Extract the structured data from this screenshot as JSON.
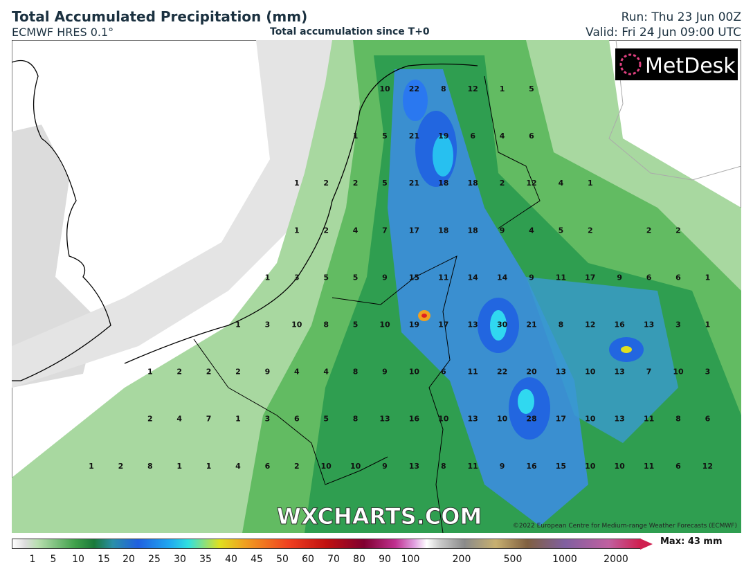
{
  "header": {
    "title": "Total Accumulated Precipitation (mm)",
    "model": "ECMWF HRES 0.1°",
    "subtitle": "Total accumulation since T+0",
    "run": "Run: Thu 23 Jun 00Z",
    "valid": "Valid: Fri 24 Jun 09:00 UTC"
  },
  "map": {
    "logo": "MetDesk",
    "watermark": "WXCHARTS.COM",
    "copyright": "©2022 European Centre for Medium-range Weather Forecasts (ECMWF)",
    "point_values": [
      [
        null,
        null,
        null,
        null,
        null,
        null,
        null,
        null,
        null,
        null,
        10,
        22,
        8,
        12,
        1,
        5,
        null,
        null,
        null,
        null,
        null,
        null
      ],
      [
        null,
        null,
        null,
        null,
        null,
        null,
        null,
        null,
        null,
        1,
        5,
        21,
        19,
        6,
        4,
        6,
        null,
        null,
        null,
        null,
        null,
        null
      ],
      [
        null,
        null,
        null,
        null,
        null,
        null,
        null,
        1,
        2,
        2,
        5,
        21,
        18,
        18,
        2,
        12,
        4,
        1,
        null,
        null,
        null,
        null
      ],
      [
        null,
        null,
        null,
        null,
        null,
        null,
        null,
        1,
        2,
        4,
        7,
        17,
        18,
        18,
        9,
        4,
        5,
        2,
        null,
        2,
        2,
        null
      ],
      [
        null,
        null,
        null,
        null,
        null,
        null,
        1,
        3,
        5,
        5,
        9,
        15,
        11,
        14,
        14,
        9,
        11,
        17,
        9,
        6,
        6,
        1
      ],
      [
        null,
        null,
        null,
        null,
        null,
        1,
        3,
        10,
        8,
        5,
        10,
        19,
        17,
        13,
        30,
        21,
        8,
        12,
        16,
        13,
        3,
        1
      ],
      [
        null,
        null,
        1,
        2,
        2,
        2,
        9,
        4,
        4,
        8,
        9,
        10,
        6,
        11,
        22,
        20,
        13,
        10,
        13,
        7,
        10,
        3
      ],
      [
        null,
        null,
        2,
        4,
        7,
        1,
        3,
        6,
        5,
        8,
        13,
        16,
        10,
        13,
        10,
        28,
        17,
        10,
        13,
        11,
        8,
        6
      ],
      [
        1,
        2,
        8,
        1,
        1,
        4,
        6,
        2,
        10,
        10,
        9,
        13,
        8,
        11,
        9,
        16,
        15,
        10,
        10,
        11,
        6,
        12
      ]
    ]
  },
  "legend": {
    "labels": [
      1,
      5,
      10,
      15,
      20,
      25,
      30,
      35,
      40,
      45,
      50,
      60,
      70,
      80,
      90,
      100,
      200,
      500,
      1000,
      2000
    ],
    "max": "Max: 43 mm"
  }
}
